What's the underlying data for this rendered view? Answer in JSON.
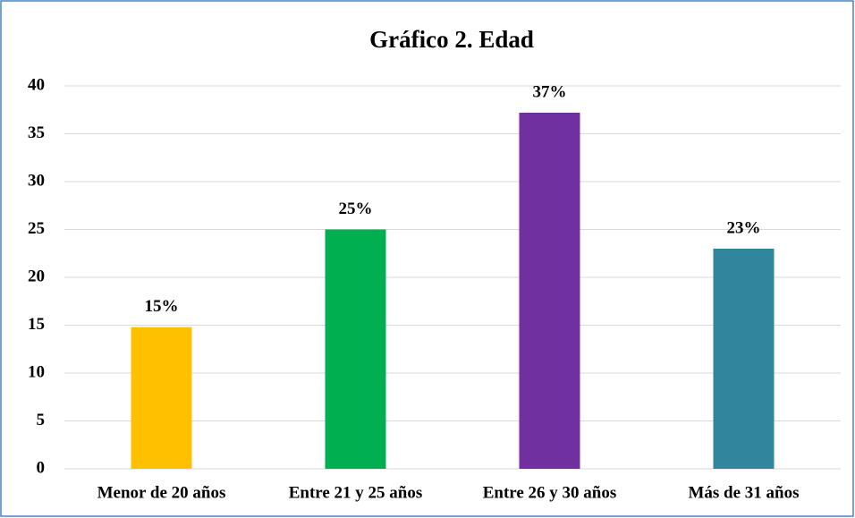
{
  "chart_data": {
    "type": "bar",
    "title": "Gráfico 2. Edad",
    "categories": [
      "Menor de 20 años",
      "Entre 21 y 25 años",
      "Entre 26 y 30 años",
      "Más de 31 años"
    ],
    "values": [
      14.8,
      25,
      37.2,
      23
    ],
    "value_labels": [
      "15%",
      "25%",
      "37%",
      "23%"
    ],
    "colors": [
      "#ffc000",
      "#00b050",
      "#7030a0",
      "#31859c"
    ],
    "ylim": [
      0,
      40
    ],
    "yticks": [
      0,
      5,
      10,
      15,
      20,
      25,
      30,
      35,
      40
    ],
    "grid": true
  }
}
